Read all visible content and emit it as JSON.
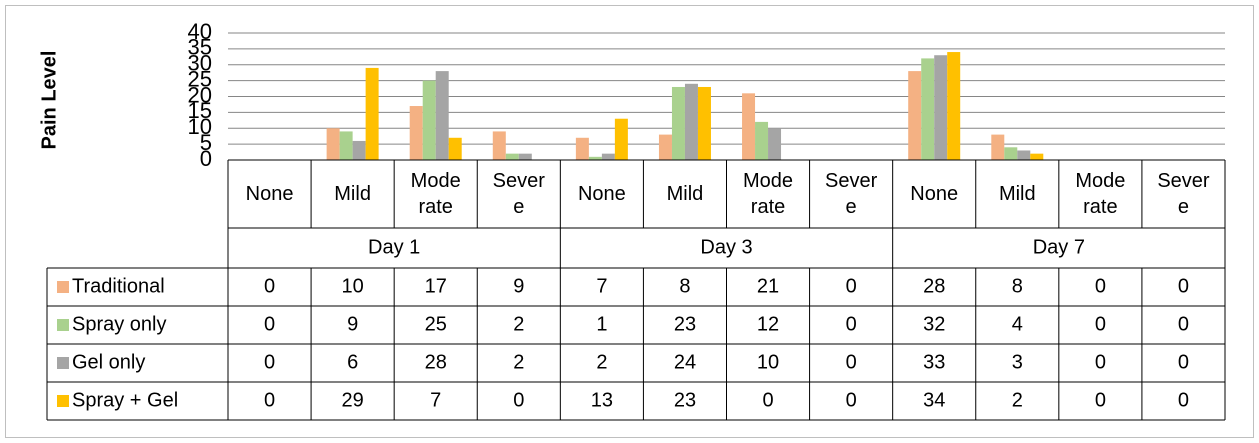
{
  "chart_data": {
    "type": "bar",
    "y_label": "Pain Level",
    "ylim": [
      0,
      40
    ],
    "yticks": [
      0,
      5,
      10,
      15,
      20,
      25,
      30,
      35,
      40
    ],
    "grid": true,
    "groups": [
      {
        "name": "Day 1",
        "categories": [
          "None",
          "Mild",
          "Moderate",
          "Severe"
        ]
      },
      {
        "name": "Day 3",
        "categories": [
          "None",
          "Mild",
          "Moderate",
          "Severe"
        ]
      },
      {
        "name": "Day 7",
        "categories": [
          "None",
          "Mild",
          "Moderate",
          "Severe"
        ]
      }
    ],
    "series": [
      {
        "name": "Traditional",
        "color": "#f4b183",
        "values": [
          0,
          10,
          17,
          9,
          7,
          8,
          21,
          0,
          28,
          8,
          0,
          0
        ]
      },
      {
        "name": "Spray only",
        "color": "#a9d18e",
        "values": [
          0,
          9,
          25,
          2,
          1,
          23,
          12,
          0,
          32,
          4,
          0,
          0
        ]
      },
      {
        "name": "Gel only",
        "color": "#a5a5a5",
        "values": [
          0,
          6,
          28,
          2,
          2,
          24,
          10,
          0,
          33,
          3,
          0,
          0
        ]
      },
      {
        "name": "Spray + Gel",
        "color": "#ffc000",
        "values": [
          0,
          29,
          7,
          0,
          13,
          23,
          0,
          0,
          34,
          2,
          0,
          0
        ]
      }
    ]
  }
}
